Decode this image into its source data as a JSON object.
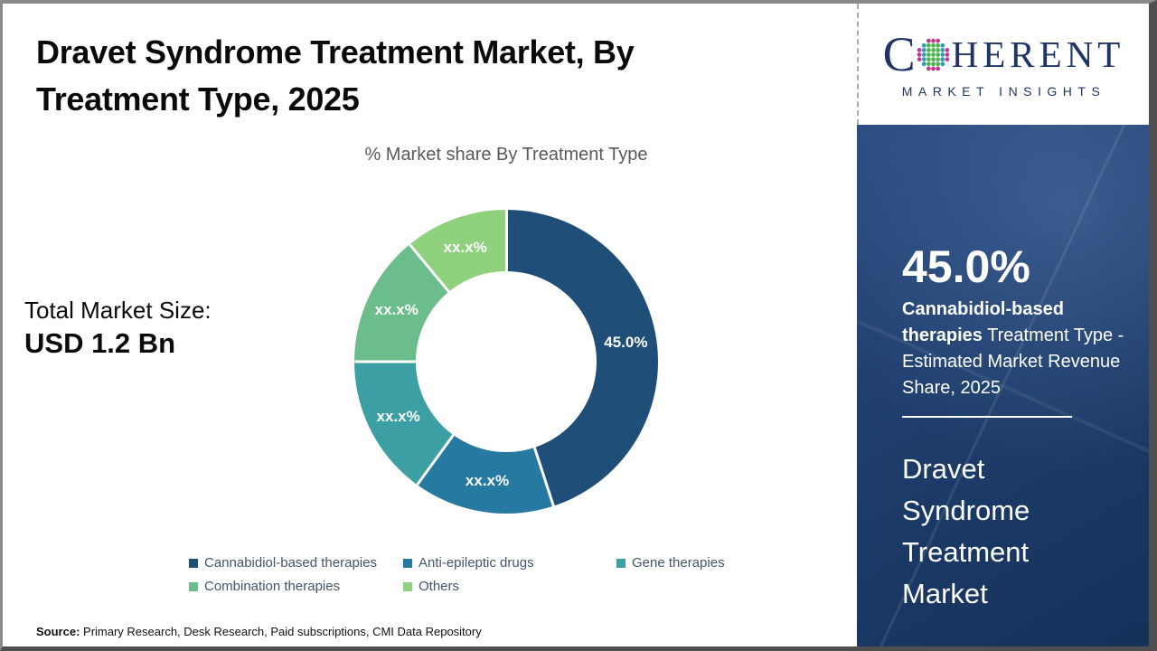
{
  "header": {
    "title_lines": [
      "Dravet Syndrome Treatment Market, By",
      "Treatment Type, 2025"
    ]
  },
  "logo": {
    "brand_start": "C",
    "brand_end": "HERENT",
    "tagline": "MARKET INSIGHTS",
    "brand_color": "#1E3566",
    "globe_colors": {
      "green": "#4CB748",
      "teal": "#2D9BB5",
      "magenta": "#C0398F"
    }
  },
  "market_size": {
    "label": "Total Market Size:",
    "value": "USD 1.2 Bn"
  },
  "chart_data": {
    "type": "pie",
    "subtype": "donut",
    "title": "% Market share By Treatment Type",
    "categories": [
      "Cannabidiol-based therapies",
      "Anti-epileptic drugs",
      "Gene therapies",
      "Combination therapies",
      "Others"
    ],
    "values": [
      45.0,
      15.0,
      15.0,
      14.0,
      11.0
    ],
    "value_labels": [
      "45.0%",
      "xx.x%",
      "xx.x%",
      "xx.x%",
      "xx.x%"
    ],
    "colors": [
      "#1F4E79",
      "#2679A1",
      "#3C9FA4",
      "#6BBD8C",
      "#90D17E"
    ],
    "legend_position": "bottom",
    "label_text_color": "#ffffff"
  },
  "sidebar": {
    "highlight_value": "45.0%",
    "highlight_bold": "Cannabidiol-based therapies",
    "highlight_rest": " Treatment Type - Estimated Market Revenue Share, 2025",
    "market_name": "Dravet Syndrome Treatment Market",
    "background_color": "#1d3c6a"
  },
  "footer": {
    "source_label": "Source:",
    "source_text": " Primary Research, Desk Research, Paid subscriptions, CMI Data Repository"
  }
}
